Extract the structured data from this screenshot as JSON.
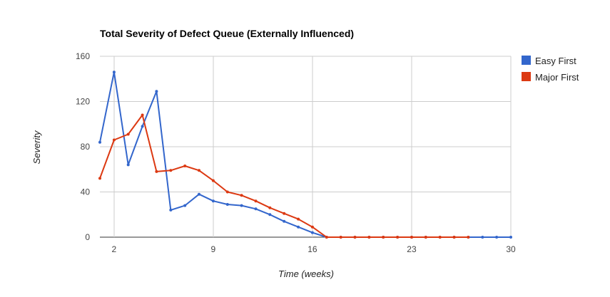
{
  "chart_data": {
    "type": "line",
    "title": "Total Severity of Defect Queue (Externally Influenced)",
    "xlabel": "Time (weeks)",
    "ylabel": "Severity",
    "xlim": [
      1,
      30
    ],
    "ylim": [
      0,
      160
    ],
    "x_ticks": [
      2,
      9,
      16,
      23,
      30
    ],
    "y_ticks": [
      0,
      40,
      80,
      120,
      160
    ],
    "grid": true,
    "legend_position": "right",
    "x": [
      1,
      2,
      3,
      4,
      5,
      6,
      7,
      8,
      9,
      10,
      11,
      12,
      13,
      14,
      15,
      16,
      17,
      18,
      19,
      20,
      21,
      22,
      23,
      24,
      25,
      26,
      27,
      28,
      29,
      30
    ],
    "series": [
      {
        "name": "Easy First",
        "color": "#3366cc",
        "values": [
          84,
          146,
          64,
          98,
          129,
          24,
          28,
          38,
          32,
          29,
          28,
          25,
          20,
          14,
          9,
          4,
          0,
          0,
          0,
          0,
          0,
          0,
          0,
          0,
          0,
          0,
          0,
          0,
          0,
          0
        ]
      },
      {
        "name": "Major First",
        "color": "#dc3912",
        "values": [
          52,
          86,
          91,
          108,
          58,
          59,
          63,
          59,
          50,
          40,
          37,
          32,
          26,
          21,
          16,
          9,
          0,
          0,
          0,
          0,
          0,
          0,
          0,
          0,
          0,
          0,
          0,
          null,
          null,
          null
        ]
      }
    ]
  }
}
